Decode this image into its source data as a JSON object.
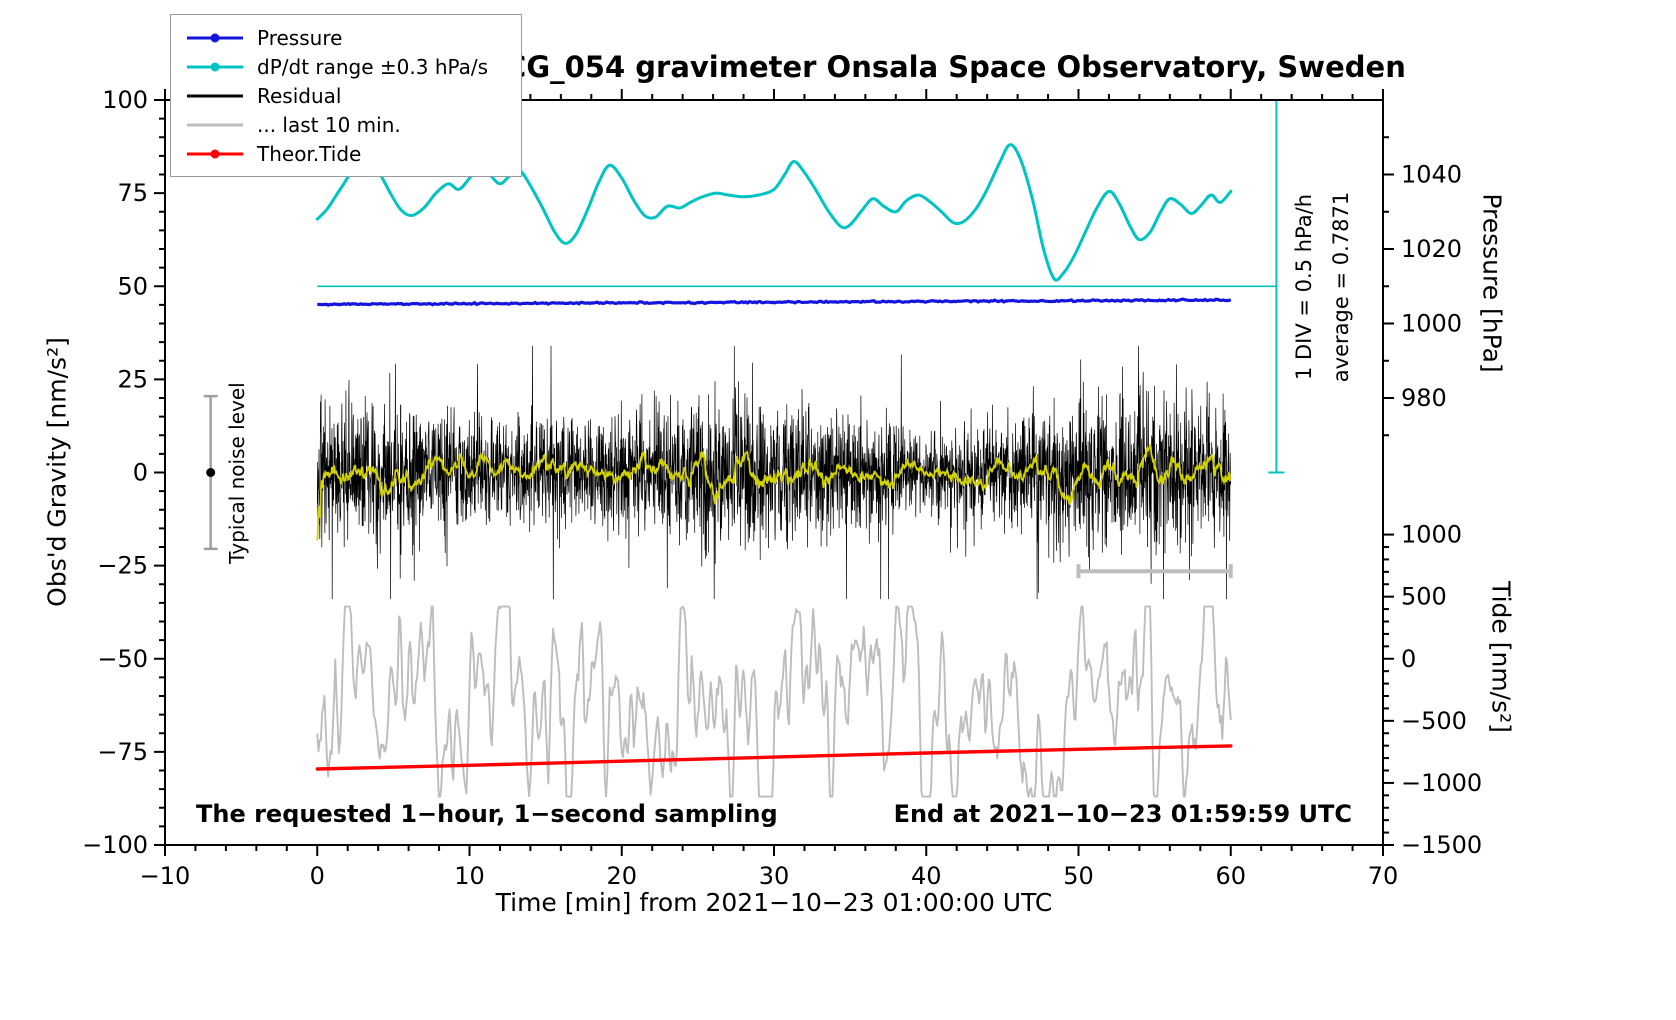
{
  "title": "SCG_054 gravimeter Onsala Space Observatory, Sweden",
  "legend": {
    "items": [
      {
        "label": "Pressure",
        "color": "#1515dd",
        "dot": true
      },
      {
        "label": "dP/dt range ±0.3 hPa/s",
        "color": "#00c3c3",
        "dot": true
      },
      {
        "label": "Residual",
        "color": "#000000",
        "dot": false
      },
      {
        "label": "... last 10 min.",
        "color": "#bdbdbd",
        "dot": false
      },
      {
        "label": "Theor.Tide",
        "color": "#ff0000",
        "dot": true
      }
    ]
  },
  "annotations": {
    "div_scale_label": "1 DIV = 0.5 hPa/h",
    "average_label": "average = 0.7871",
    "noise_label": "Typical noise level",
    "footer_left": "The requested 1−hour, 1−second sampling",
    "footer_right": "End at 2021−10−23 01:59:59 UTC"
  },
  "chart_data": {
    "type": "line",
    "title": "SCG_054 gravimeter Onsala Space Observatory, Sweden",
    "xlabel": "Time [min] from 2021−10−23 01:00:00 UTC",
    "ylabel": "Obs'd Gravity [nm/s²]",
    "xlim": [
      -10,
      70
    ],
    "ylim": [
      -100,
      100
    ],
    "x_major_ticks": [
      -10,
      0,
      10,
      20,
      30,
      40,
      50,
      60,
      70
    ],
    "x_minor_step": 2,
    "y_major_ticks": [
      -100,
      -75,
      -50,
      -25,
      0,
      25,
      50,
      75,
      100
    ],
    "y_minor_step": 5,
    "grid": false,
    "legend_position": "top-left",
    "pressure_axis": {
      "label": "Pressure [hPa]",
      "major_ticks": [
        980,
        1000,
        1020,
        1040
      ],
      "minor_ticks": [
        970,
        990,
        1010,
        1030,
        1050
      ],
      "offset": 960,
      "mapping": "gravity_axis_value = pressure_hPa - 960"
    },
    "tide_axis": {
      "label": "Tide [nm/s²]",
      "major_ticks": [
        -1500,
        -1000,
        -500,
        0,
        500,
        1000
      ],
      "minor_step": 100,
      "scale": 30,
      "offset": -50,
      "mapping": "gravity_axis_value = tide / 30 - 50"
    },
    "series": [
      {
        "id": "dpdt_ref",
        "name": "dP/dt zero reference line",
        "color": "#00c3c3",
        "width": 1.6,
        "style": "segments",
        "points": [
          [
            0,
            50
          ],
          [
            63,
            50
          ]
        ]
      },
      {
        "id": "dpdt",
        "name": "dP/dt range ±0.3 hPa/s",
        "color": "#00c3c3",
        "width": 3,
        "style": "smooth",
        "points": [
          [
            0,
            68
          ],
          [
            0.7,
            71
          ],
          [
            1.5,
            76
          ],
          [
            2.5,
            82
          ],
          [
            3.3,
            84
          ],
          [
            4,
            81
          ],
          [
            4.8,
            75
          ],
          [
            5.5,
            70.5
          ],
          [
            6.2,
            69
          ],
          [
            7,
            71
          ],
          [
            7.8,
            75
          ],
          [
            8.6,
            77.5
          ],
          [
            9.3,
            76
          ],
          [
            10,
            79
          ],
          [
            10.6,
            82
          ],
          [
            11.3,
            80
          ],
          [
            12,
            77.5
          ],
          [
            12.6,
            79.5
          ],
          [
            13.3,
            81
          ],
          [
            14,
            77
          ],
          [
            14.8,
            71
          ],
          [
            15.6,
            64.5
          ],
          [
            16.3,
            61.5
          ],
          [
            17,
            64
          ],
          [
            17.8,
            71
          ],
          [
            18.5,
            78
          ],
          [
            19.2,
            82.5
          ],
          [
            20,
            79
          ],
          [
            20.8,
            73
          ],
          [
            21.5,
            69
          ],
          [
            22.2,
            68.5
          ],
          [
            23,
            71.5
          ],
          [
            23.8,
            71
          ],
          [
            24.5,
            72.5
          ],
          [
            25.3,
            74
          ],
          [
            26.2,
            75
          ],
          [
            27,
            74.5
          ],
          [
            28,
            74
          ],
          [
            29,
            74.5
          ],
          [
            30,
            76
          ],
          [
            30.7,
            80
          ],
          [
            31.3,
            83.5
          ],
          [
            32,
            80.5
          ],
          [
            32.8,
            75.5
          ],
          [
            33.6,
            70
          ],
          [
            34.4,
            66
          ],
          [
            35,
            66.5
          ],
          [
            35.8,
            70.5
          ],
          [
            36.5,
            73.5
          ],
          [
            37.2,
            71.5
          ],
          [
            38,
            70
          ],
          [
            38.7,
            73
          ],
          [
            39.5,
            74.5
          ],
          [
            40.3,
            72.5
          ],
          [
            41,
            70
          ],
          [
            41.8,
            67
          ],
          [
            42.5,
            67.5
          ],
          [
            43.3,
            71
          ],
          [
            44,
            76
          ],
          [
            44.8,
            83
          ],
          [
            45.5,
            88
          ],
          [
            46.2,
            84
          ],
          [
            47,
            73
          ],
          [
            47.7,
            60
          ],
          [
            48.4,
            52
          ],
          [
            49,
            53.5
          ],
          [
            49.7,
            58
          ],
          [
            50.5,
            65
          ],
          [
            51.2,
            71
          ],
          [
            52,
            75.5
          ],
          [
            52.7,
            72
          ],
          [
            53.4,
            66
          ],
          [
            54,
            62.5
          ],
          [
            54.7,
            64.5
          ],
          [
            55.4,
            70
          ],
          [
            56,
            73.5
          ],
          [
            56.7,
            72
          ],
          [
            57.4,
            69.5
          ],
          [
            58,
            71.5
          ],
          [
            58.7,
            74.5
          ],
          [
            59.3,
            72.5
          ],
          [
            60,
            75.5
          ]
        ]
      },
      {
        "id": "pressure",
        "name": "Pressure",
        "color": "#1515dd",
        "width": 3.2,
        "style": "jitterline",
        "points": [
          [
            0,
            45.15
          ],
          [
            60,
            46.3
          ]
        ],
        "jitter": 0.1,
        "n": 500,
        "seed": 11,
        "pressure_hPa_range": [
          1005.2,
          1006.3
        ]
      },
      {
        "id": "residual",
        "name": "Residual",
        "color": "#000000",
        "width": 0.7,
        "style": "noise",
        "xrange": [
          0,
          60
        ],
        "n": 3600,
        "mean": 0,
        "std": 9,
        "spike_prob": 0.03,
        "spike_gain": 1.9,
        "clip": 34,
        "seed": 42
      },
      {
        "id": "residual_smooth",
        "name": "Residual low-pass",
        "color": "#d2d200",
        "width": 1.8,
        "style": "smooth_of",
        "source": "residual",
        "window": 55,
        "gain": 2.2
      },
      {
        "id": "last10",
        "name": "... last 10 min.",
        "color": "#bdbdbd",
        "width": 1.9,
        "style": "arnoise",
        "xrange": [
          0,
          60
        ],
        "n": 760,
        "mean": -60.5,
        "std": 9.5,
        "phi": 0.8,
        "smooth": 3,
        "clip": [
          -87,
          -36
        ],
        "seed": 314
      },
      {
        "id": "tide",
        "name": "Theor.Tide",
        "color": "#ff0000",
        "width": 3.4,
        "style": "smooth",
        "points": [
          [
            0,
            -79.6
          ],
          [
            10,
            -78.6
          ],
          [
            20,
            -77.5
          ],
          [
            30,
            -76.4
          ],
          [
            40,
            -75.3
          ],
          [
            50,
            -74.3
          ],
          [
            60,
            -73.4
          ]
        ],
        "tide_units_range": [
          -888,
          -702
        ]
      }
    ],
    "markers": {
      "noise_level": {
        "x": -7,
        "y": 0,
        "err": 20.5,
        "label": "Typical noise level",
        "bar_color": "#a0a0a0",
        "dot_color": "#000000"
      },
      "scale_bar": {
        "x1": 50,
        "x2": 60,
        "y": -26.5,
        "color": "#bdbdbd"
      },
      "div_scale": {
        "x": 63,
        "y1": 0,
        "y2": 100,
        "color": "#00c3c3",
        "labels": [
          "1 DIV = 0.5 hPa/h",
          "average = 0.7871"
        ]
      }
    }
  }
}
